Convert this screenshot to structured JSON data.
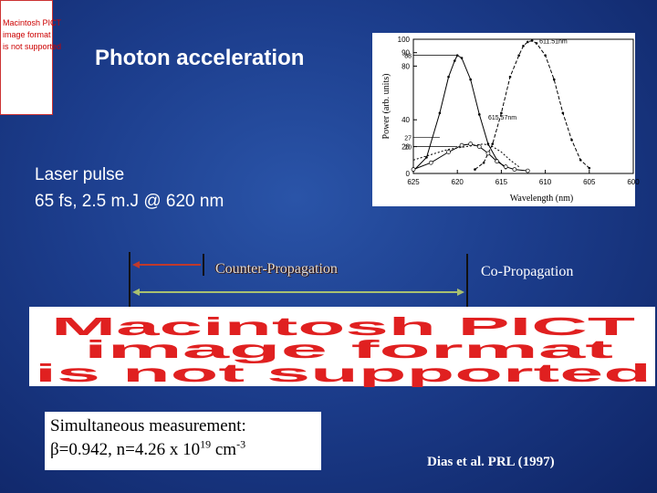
{
  "slide": {
    "title": "Photon acceleration",
    "laser_line1": "Laser pulse",
    "laser_line2": "65 fs, 2.5 m.J @ 620 nm",
    "counter_label": "Counter-Propagation",
    "co_label": "Co-Propagation",
    "sim_line1": "Simultaneous measurement:",
    "sim_line2_pre": "β=0.942, n=4.26 x 10",
    "sim_exp1": "19",
    "sim_unit": " cm",
    "sim_exp2": "-3",
    "citation": "Dias et al. PRL (1997)"
  },
  "placeholder_small": [
    "Macintosh PICT",
    "image format",
    "is not supported"
  ],
  "placeholder_banner": [
    "Macintosh PICT",
    "image format",
    "is not supported"
  ],
  "colors": {
    "background": "#1c3d8c",
    "placeholder_text": "#e02020",
    "arrow_red": "#c0392b",
    "arrow_green": "#a8c070"
  },
  "chart_data": {
    "type": "line",
    "xlabel": "Wavelength (nm)",
    "ylabel": "Power (arb. units)",
    "x_ticks": [
      625,
      620,
      615,
      610,
      605,
      600
    ],
    "y_ticks": [
      100,
      90,
      80,
      40,
      20,
      0
    ],
    "y_tick_labels": [
      "100",
      "90",
      "80",
      "40",
      "20",
      "0"
    ],
    "extra_y_labels": [
      "88",
      "27",
      "20"
    ],
    "xlim": [
      625,
      600
    ],
    "ylim": [
      0,
      100
    ],
    "annotations": [
      "611.51nm",
      "615.57nm"
    ],
    "series": [
      {
        "x": [
          625,
          623.5,
          622,
          621,
          620.3,
          620,
          619.5,
          618.5,
          617.5,
          616.5,
          615.5,
          614.5
        ],
        "y": [
          2,
          12,
          45,
          72,
          84,
          88,
          86,
          70,
          44,
          22,
          10,
          4
        ]
      },
      {
        "x": [
          618,
          617,
          616,
          615,
          614,
          613,
          612.5,
          612,
          611.5,
          611,
          610,
          609,
          608,
          607,
          606,
          605
        ],
        "y": [
          3,
          8,
          22,
          45,
          72,
          88,
          95,
          98,
          99,
          97,
          88,
          70,
          45,
          25,
          10,
          4
        ]
      },
      {
        "x": [
          625,
          623,
          621,
          619.5,
          618.5,
          617.5,
          616.5,
          615.5,
          614.5,
          613.5,
          612
        ],
        "y": [
          3,
          8,
          16,
          21,
          22,
          20,
          15,
          9,
          5,
          3,
          2
        ]
      },
      {
        "x": [
          625,
          623,
          621,
          619,
          618,
          617,
          616,
          615,
          614,
          613
        ],
        "y": [
          10,
          14,
          18,
          20,
          21,
          22,
          20,
          16,
          10,
          5
        ]
      }
    ]
  }
}
